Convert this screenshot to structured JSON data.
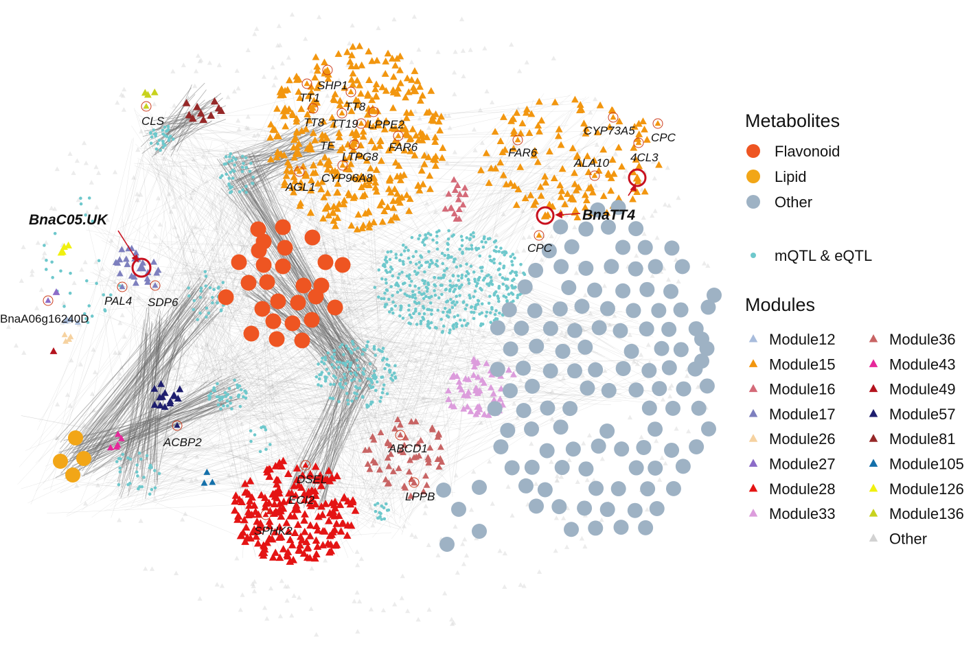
{
  "colors": {
    "flavonoid": "#ee5522",
    "lipid": "#f2a617",
    "other_metabolite": "#9eb2c4",
    "qtl": "#6ec8cc",
    "edge": "#8a8a8a",
    "highlight": "#c8101e",
    "background_node": "#dcdcdc"
  },
  "gene_labels": {
    "shp1": "SHP1",
    "tt1": "TT1",
    "tt8_a": "TT8",
    "tt8_b": "TT8",
    "tt19": "TT19",
    "lppe2": "LPPE2",
    "te": "TE",
    "far6_a": "FAR6",
    "ltpg8": "LTPG8",
    "cyp96a8": "CYP96A8",
    "agl1": "AGL1",
    "cls": "CLS",
    "cyp73a5": "CYP73A5",
    "cpc_a": "CPC",
    "far6_b": "FAR6",
    "ala10": "ALA10",
    "4cl3": "4CL3",
    "bnatt4": "BnaTT4",
    "cpc_b": "CPC",
    "bnac05": "BnaC05.UK",
    "pal4": "PAL4",
    "sdp6": "SDP6",
    "bnaa06": "BnaA06g16240D",
    "acbp2": "ACBP2",
    "abcd1": "ABCD1",
    "lppb": "LPPB",
    "dsel": "DSEL",
    "eci2": "ECI2",
    "sphk2": "SPHK2"
  },
  "legend": {
    "metabolites": {
      "title": "Metabolites",
      "items": [
        {
          "label": "Flavonoid",
          "color": "#ee5522"
        },
        {
          "label": "Lipid",
          "color": "#f2a617"
        },
        {
          "label": "Other",
          "color": "#9eb2c4"
        }
      ]
    },
    "qtl": {
      "label": "mQTL & eQTL",
      "color": "#6ec8cc"
    },
    "modules": {
      "title": "Modules",
      "left": [
        {
          "label": "Module12",
          "color": "#a8bcdc"
        },
        {
          "label": "Module15",
          "color": "#f2960f"
        },
        {
          "label": "Module16",
          "color": "#d46a78"
        },
        {
          "label": "Module17",
          "color": "#7d7fbe"
        },
        {
          "label": "Module26",
          "color": "#f6d2a0"
        },
        {
          "label": "Module27",
          "color": "#8c6cc8"
        },
        {
          "label": "Module28",
          "color": "#e41414"
        },
        {
          "label": "Module33",
          "color": "#dc9cdc"
        }
      ],
      "right": [
        {
          "label": "Module36",
          "color": "#c86464"
        },
        {
          "label": "Module43",
          "color": "#e6289a"
        },
        {
          "label": "Module49",
          "color": "#b4141e"
        },
        {
          "label": "Module57",
          "color": "#1e1e6e"
        },
        {
          "label": "Module81",
          "color": "#962828"
        },
        {
          "label": "Module105",
          "color": "#1470aa"
        },
        {
          "label": "Module126",
          "color": "#f0f00f"
        },
        {
          "label": "Module136",
          "color": "#c8d21e"
        },
        {
          "label": "Other",
          "color": "#d2d2d2"
        }
      ]
    }
  }
}
